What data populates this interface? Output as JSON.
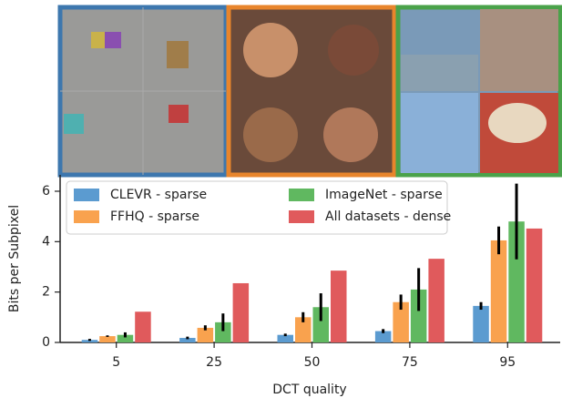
{
  "chart_data": {
    "type": "bar",
    "xlabel": "DCT quality",
    "ylabel": "Bits per Subpixel",
    "categories": [
      "5",
      "25",
      "50",
      "75",
      "95"
    ],
    "series": [
      {
        "name": "CLEVR - sparse",
        "color": "#5b9bd0",
        "values": [
          0.1,
          0.18,
          0.3,
          0.45,
          1.45
        ],
        "errors": [
          0.04,
          0.05,
          0.05,
          0.08,
          0.15
        ]
      },
      {
        "name": "FFHQ - sparse",
        "color": "#f9a24e",
        "values": [
          0.25,
          0.58,
          1.0,
          1.6,
          4.05
        ],
        "errors": [
          0.03,
          0.1,
          0.2,
          0.3,
          0.55
        ]
      },
      {
        "name": "ImageNet - sparse",
        "color": "#60b860",
        "values": [
          0.3,
          0.8,
          1.4,
          2.1,
          4.8
        ],
        "errors": [
          0.1,
          0.35,
          0.55,
          0.85,
          1.5
        ]
      },
      {
        "name": "All datasets - dense",
        "color": "#e05a5c",
        "values": [
          1.22,
          2.35,
          2.85,
          3.32,
          4.52
        ]
      }
    ],
    "ylim": [
      0,
      6.65
    ],
    "yticks": [
      0,
      2,
      4,
      6
    ],
    "legend": "upper left"
  }
}
